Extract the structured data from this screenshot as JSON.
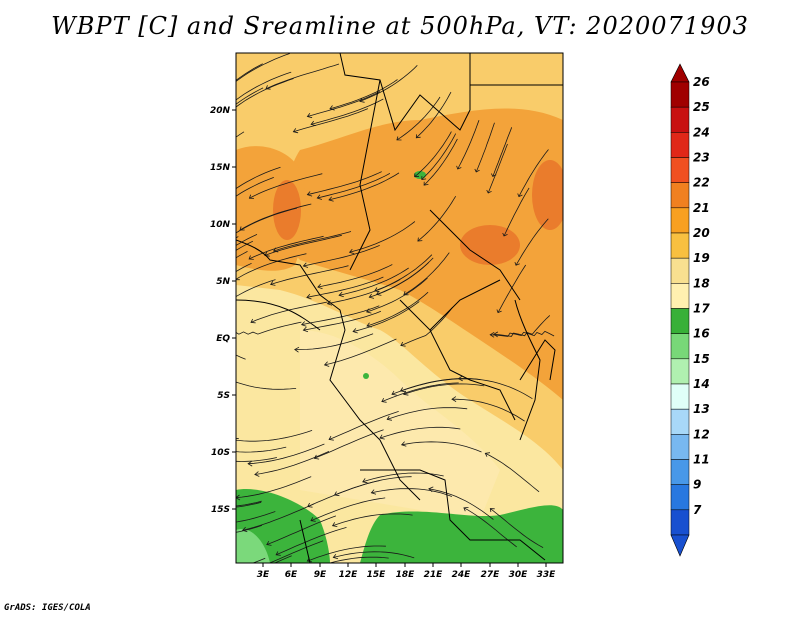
{
  "title": "WBPT [C] and Sreamline at 500hPa, VT: 2020071903",
  "credit": "GrADS: IGES/COLA",
  "lat_labels": [
    "20N",
    "15N",
    "10N",
    "5N",
    "EQ",
    "5S",
    "10S",
    "15S"
  ],
  "lon_labels": [
    "3E",
    "6E",
    "9E",
    "12E",
    "15E",
    "18E",
    "21E",
    "24E",
    "27E",
    "30E",
    "33E"
  ],
  "colorbar": {
    "levels": [
      "26",
      "25",
      "24",
      "23",
      "22",
      "21",
      "20",
      "19",
      "18",
      "17",
      "16",
      "15",
      "14",
      "13",
      "12",
      "11",
      "9",
      "7"
    ],
    "colors": [
      "#a00000",
      "#c81010",
      "#e02818",
      "#f05020",
      "#f08020",
      "#f8a020",
      "#f8c040",
      "#f8e090",
      "#fff0b0",
      "#38b038",
      "#78d878",
      "#b0f0b0",
      "#e0fff8",
      "#a8d8f8",
      "#78b8f0",
      "#4898e8",
      "#2878e0",
      "#1850d0"
    ],
    "top_arrow_color": "#a00000",
    "bottom_arrow_color": "#1850d0"
  }
}
